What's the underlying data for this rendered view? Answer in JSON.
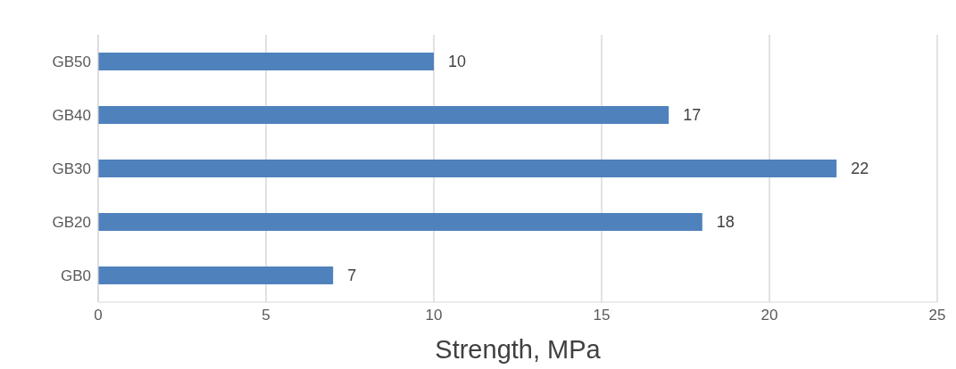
{
  "chart_data": {
    "type": "bar",
    "orientation": "horizontal",
    "xlabel": "Strength, MPa",
    "categories": [
      "GB50",
      "GB40",
      "GB30",
      "GB20",
      "GB0"
    ],
    "values": [
      10,
      17,
      22,
      18,
      7
    ],
    "color": "#4f81bd",
    "xlim": [
      0,
      25
    ],
    "xticks": [
      0,
      5,
      10,
      15,
      20,
      25
    ],
    "grid": "x",
    "data_labels": true
  }
}
